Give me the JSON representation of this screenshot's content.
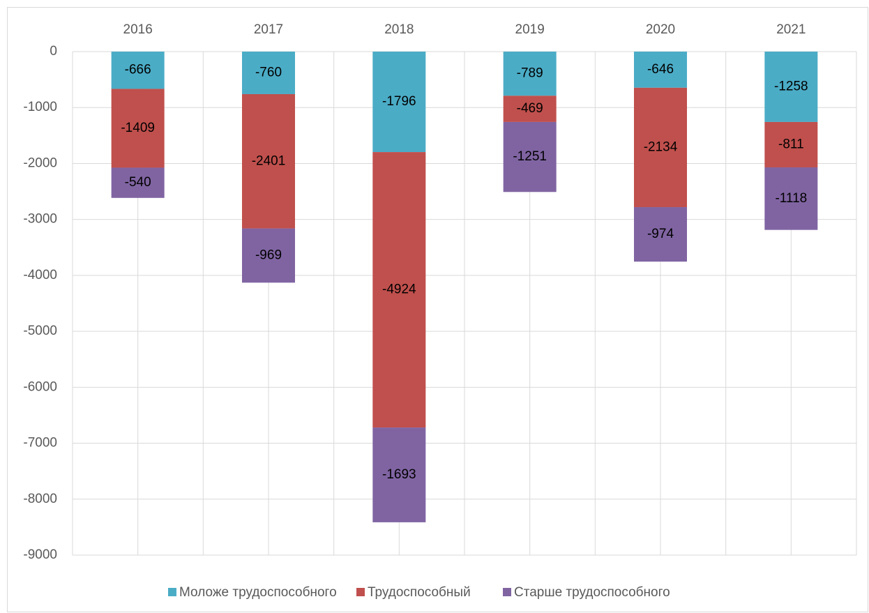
{
  "chart_data": {
    "type": "stacked_bar",
    "categories": [
      "2016",
      "2017",
      "2018",
      "2019",
      "2020",
      "2021"
    ],
    "series": [
      {
        "name": "Моложе трудоспособного",
        "color": "#4bacc6",
        "values": [
          -666,
          -760,
          -1796,
          -789,
          -646,
          -1258
        ]
      },
      {
        "name": "Трудоспособный",
        "color": "#c0504d",
        "values": [
          -1409,
          -2401,
          -4924,
          -469,
          -2134,
          -811
        ]
      },
      {
        "name": "Старше трудоспособного",
        "color": "#8064a2",
        "values": [
          -540,
          -969,
          -1693,
          -1251,
          -974,
          -1118
        ]
      }
    ],
    "ylim": [
      -9000,
      0
    ],
    "yticks": [
      0,
      -1000,
      -2000,
      -3000,
      -4000,
      -5000,
      -6000,
      -7000,
      -8000,
      -9000
    ],
    "grid": true,
    "legend": "bottom"
  }
}
